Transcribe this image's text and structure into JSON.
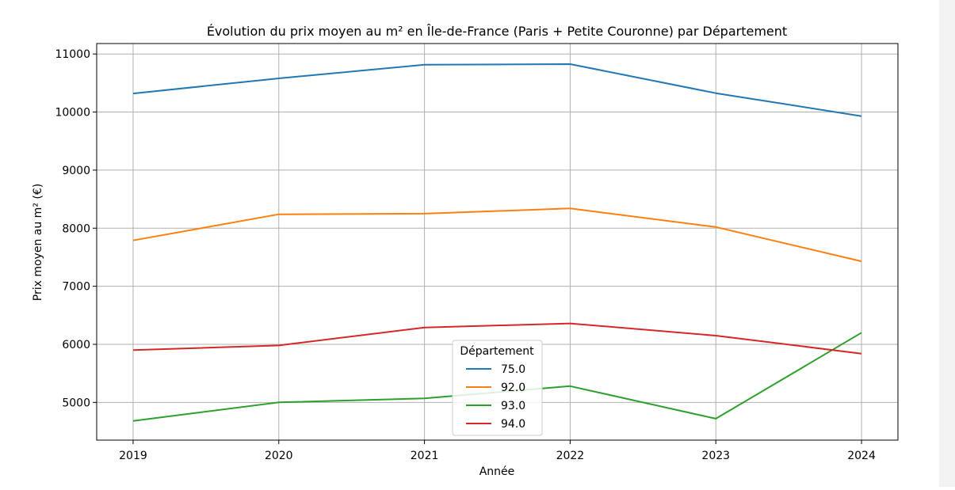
{
  "chart_data": {
    "type": "line",
    "title": "Évolution du prix moyen au m² en Île-de-France (Paris + Petite Couronne) par Département",
    "xlabel": "Année",
    "ylabel": "Prix moyen au m² (€)",
    "x": [
      2019,
      2020,
      2021,
      2022,
      2023,
      2024
    ],
    "xlim": [
      2018.75,
      2024.25
    ],
    "ylim": [
      4350,
      11180
    ],
    "yticks": [
      5000,
      6000,
      7000,
      8000,
      9000,
      10000,
      11000
    ],
    "grid": true,
    "legend": {
      "title": "Département",
      "placement": "lower-center"
    },
    "series": [
      {
        "name": "75.0",
        "color": "#1f77b4",
        "values": [
          10320,
          10580,
          10815,
          10825,
          10325,
          9930
        ]
      },
      {
        "name": "92.0",
        "color": "#ff7f0e",
        "values": [
          7790,
          8240,
          8250,
          8340,
          8020,
          7430
        ]
      },
      {
        "name": "93.0",
        "color": "#2ca02c",
        "values": [
          4680,
          5000,
          5070,
          5280,
          4720,
          6200
        ]
      },
      {
        "name": "94.0",
        "color": "#d62728",
        "values": [
          5900,
          5980,
          6290,
          6360,
          6150,
          5840
        ]
      }
    ]
  }
}
